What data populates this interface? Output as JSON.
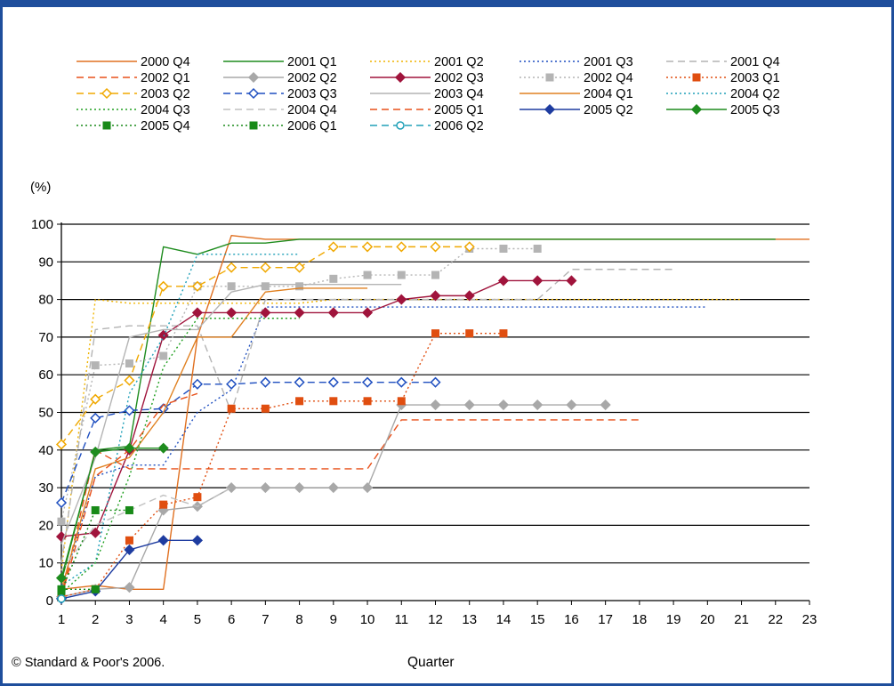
{
  "chart_data": {
    "type": "line",
    "ylabel": "(%)",
    "xlabel": "Quarter",
    "footer": "© Standard & Poor's 2006.",
    "x_ticks": [
      1,
      2,
      3,
      4,
      5,
      6,
      7,
      8,
      9,
      10,
      11,
      12,
      13,
      14,
      15,
      16,
      17,
      18,
      19,
      20,
      21,
      22,
      23
    ],
    "y_ticks": [
      0,
      10,
      20,
      30,
      40,
      50,
      60,
      70,
      80,
      90,
      100
    ],
    "xlim": [
      1,
      23
    ],
    "ylim": [
      0,
      100
    ],
    "grid": "horizontal",
    "legend_position": "top",
    "series": [
      {
        "name": "2000 Q4",
        "color": "#e07020",
        "dash": "solid",
        "marker": "none",
        "values": [
          3,
          4,
          3,
          3,
          70,
          97,
          96,
          96,
          96,
          96,
          96,
          96,
          96,
          96,
          96,
          96,
          96,
          96,
          96,
          96,
          96,
          96,
          96
        ]
      },
      {
        "name": "2001 Q1",
        "color": "#1e8c1e",
        "dash": "solid",
        "marker": "none",
        "values": [
          5,
          40,
          41,
          94,
          92,
          95,
          95,
          96,
          96,
          96,
          96,
          96,
          96,
          96,
          96,
          96,
          96,
          96,
          96,
          96,
          96,
          96
        ]
      },
      {
        "name": "2001 Q2",
        "color": "#f0b400",
        "dash": "dotted",
        "marker": "none",
        "values": [
          8,
          80,
          79,
          79,
          79,
          79,
          79,
          79,
          80,
          80,
          80,
          80,
          80,
          80,
          80,
          80,
          80,
          80,
          80,
          80,
          80
        ]
      },
      {
        "name": "2001 Q3",
        "color": "#1f4fc0",
        "dash": "dotted",
        "marker": "none",
        "values": [
          3,
          33,
          36,
          36,
          50,
          56,
          78,
          78,
          78,
          78,
          78,
          78,
          78,
          78,
          78,
          78,
          78,
          78,
          78,
          78
        ]
      },
      {
        "name": "2001 Q4",
        "color": "#b4b4b4",
        "dash": "dashed",
        "marker": "none",
        "values": [
          10,
          72,
          73,
          73,
          73,
          50,
          80,
          80,
          80,
          80,
          80,
          80,
          80,
          80,
          80,
          88,
          88,
          88,
          88
        ]
      },
      {
        "name": "2002 Q1",
        "color": "#e8501a",
        "dash": "dashed",
        "marker": "none",
        "values": [
          1,
          40,
          35,
          35,
          35,
          35,
          35,
          35,
          35,
          35,
          48,
          48,
          48,
          48,
          48,
          48,
          48,
          48
        ]
      },
      {
        "name": "2002 Q2",
        "color": "#a8a8a8",
        "dash": "solid",
        "marker": "diamond",
        "values": [
          1,
          3,
          3.5,
          24,
          25,
          30,
          30,
          30,
          30,
          30,
          52,
          52,
          52,
          52,
          52,
          52,
          52
        ]
      },
      {
        "name": "2002 Q3",
        "color": "#a0143c",
        "dash": "solid",
        "marker": "diamond",
        "values": [
          17,
          18,
          40,
          70.5,
          76.5,
          76.5,
          76.5,
          76.5,
          76.5,
          76.5,
          80,
          81,
          81,
          85,
          85,
          85
        ]
      },
      {
        "name": "2002 Q4",
        "color": "#b4b4b4",
        "dash": "dotted",
        "marker": "square",
        "values": [
          21,
          62.5,
          63,
          65,
          83.5,
          83.5,
          83.5,
          83.5,
          85.5,
          86.5,
          86.5,
          86.5,
          93.5,
          93.5,
          93.5
        ]
      },
      {
        "name": "2003 Q1",
        "color": "#e04e10",
        "dash": "dotted",
        "marker": "square",
        "values": [
          1,
          3,
          16,
          25.5,
          27.5,
          51,
          51,
          53,
          53,
          53,
          53,
          71,
          71,
          71
        ]
      },
      {
        "name": "2003 Q2",
        "color": "#f0a800",
        "dash": "dashed",
        "marker": "diamond-open",
        "values": [
          41.5,
          53.5,
          58.5,
          83.5,
          83.5,
          88.5,
          88.5,
          88.5,
          94,
          94,
          94,
          94,
          94
        ]
      },
      {
        "name": "2003 Q3",
        "color": "#1f4fc0",
        "dash": "dashed",
        "marker": "diamond-open",
        "values": [
          26,
          48.5,
          50.5,
          51,
          57.5,
          57.5,
          58,
          58,
          58,
          58,
          58,
          58
        ]
      },
      {
        "name": "2003 Q4",
        "color": "#b4b4b4",
        "dash": "solid",
        "marker": "none",
        "values": [
          15,
          38,
          70,
          72,
          72,
          82,
          84,
          84,
          84,
          84,
          84
        ]
      },
      {
        "name": "2004 Q1",
        "color": "#e08020",
        "dash": "solid",
        "marker": "none",
        "values": [
          3,
          35,
          38,
          50,
          70,
          70,
          82,
          83,
          83,
          83
        ]
      },
      {
        "name": "2004 Q2",
        "color": "#20a0b8",
        "dash": "dotted",
        "marker": "none",
        "values": [
          4,
          10,
          55,
          70,
          92,
          92,
          92,
          92
        ]
      },
      {
        "name": "2004 Q3",
        "color": "#22a022",
        "dash": "dotted",
        "marker": "none",
        "values": [
          2,
          10,
          33,
          62,
          75,
          75,
          75,
          75
        ]
      },
      {
        "name": "2004 Q4",
        "color": "#c0c0c0",
        "dash": "dashed",
        "marker": "none",
        "values": [
          8,
          20,
          24,
          28,
          25,
          30
        ]
      },
      {
        "name": "2005 Q1",
        "color": "#e8501a",
        "dash": "dashed",
        "marker": "none",
        "values": [
          1,
          33,
          40,
          52,
          55
        ]
      },
      {
        "name": "2005 Q2",
        "color": "#1e3ca0",
        "dash": "solid",
        "marker": "diamond",
        "values": [
          0.5,
          2.5,
          13.5,
          16,
          16
        ]
      },
      {
        "name": "2005 Q3",
        "color": "#1e8c1e",
        "dash": "solid",
        "marker": "diamond",
        "values": [
          6,
          39.5,
          40.5,
          40.5
        ]
      },
      {
        "name": "2005 Q4",
        "color": "#188a18",
        "dash": "dotted",
        "marker": "square",
        "values": [
          2.5,
          24,
          24
        ]
      },
      {
        "name": "2006 Q1",
        "color": "#188a18",
        "dash": "dotted",
        "marker": "square",
        "values": [
          3,
          3
        ]
      },
      {
        "name": "2006 Q2",
        "color": "#20a0b8",
        "dash": "dashed",
        "marker": "circle-open",
        "values": [
          0.5
        ]
      }
    ]
  }
}
